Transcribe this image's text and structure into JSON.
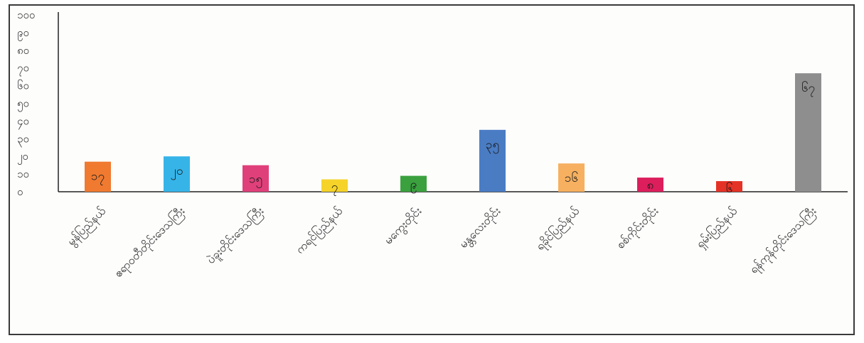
{
  "chart_data": {
    "type": "bar",
    "title": "",
    "xlabel": "",
    "ylabel": "",
    "ylim": [
      0,
      100
    ],
    "yticks": [
      {
        "value": 0,
        "label": "၀"
      },
      {
        "value": 10,
        "label": "၁၀"
      },
      {
        "value": 20,
        "label": "၂၀"
      },
      {
        "value": 30,
        "label": "၃၀"
      },
      {
        "value": 40,
        "label": "၄၀"
      },
      {
        "value": 50,
        "label": "၅၀"
      },
      {
        "value": 60,
        "label": "၆၀"
      },
      {
        "value": 70,
        "label": "၇၀"
      },
      {
        "value": 80,
        "label": "၈၀"
      },
      {
        "value": 90,
        "label": "၉၀"
      },
      {
        "value": 100,
        "label": "၁၀၀"
      }
    ],
    "categories": [
      "မွန်ပြည်နယ်",
      "ဧရာဝတီတိုင်းဒေသကြီး",
      "ပဲခူးတိုင်းဒေသကြီး",
      "ကရင်ပြည်နယ်",
      "မကွေးတိုင်း",
      "မန္တလေးတိုင်း",
      "ရခိုင်ပြည်နယ်",
      "စစ်ကိုင်းတိုင်း",
      "ရှမ်းပြည်နယ်",
      "ရန်ကုန်တိုင်းဒေသကြီး"
    ],
    "values": [
      17,
      20,
      15,
      7,
      9,
      35,
      16,
      8,
      6,
      67
    ],
    "value_labels": [
      "၁၇",
      "၂၀",
      "၁၅",
      "၇",
      "၉",
      "၃၅",
      "၁၆",
      "၈",
      "၆",
      "၆၇"
    ],
    "colors": [
      "#f07a30",
      "#36b4e8",
      "#e0407a",
      "#f5d329",
      "#3aa13e",
      "#4a7cc4",
      "#f6b060",
      "#dc1e5c",
      "#e53226",
      "#8e8e8e"
    ],
    "grid": false,
    "legend": "none"
  }
}
